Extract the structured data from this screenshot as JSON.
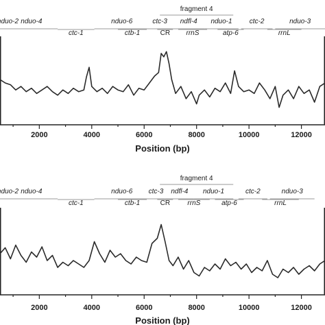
{
  "chart_data": [
    {
      "type": "line",
      "xlabel": "Position (bp)",
      "xticks": [
        2000,
        4000,
        6000,
        8000,
        10000,
        12000
      ],
      "xlim": [
        500,
        12900
      ],
      "fragment_label": "fragment 4",
      "fragment_span": [
        6600,
        9400
      ],
      "genes_top": [
        {
          "name": "nduo-2",
          "start": 500,
          "end": 1100
        },
        {
          "name": "nduo-4",
          "start": 700,
          "end": 2700
        },
        {
          "name": "nduo-6",
          "start": 4100,
          "end": 6200
        },
        {
          "name": "ctc-3",
          "start": 6100,
          "end": 7100
        },
        {
          "name": "ndfl-4",
          "start": 7100,
          "end": 8300
        },
        {
          "name": "nduo-1",
          "start": 8300,
          "end": 9600
        },
        {
          "name": "ctc-2",
          "start": 9700,
          "end": 10900
        },
        {
          "name": "nduo-3",
          "start": 11000,
          "end": 12900
        }
      ],
      "genes_bottom": [
        {
          "name": "ctc-1",
          "start": 2700,
          "end": 4100,
          "italic": true
        },
        {
          "name": "ctb-1",
          "start": 5000,
          "end": 6100,
          "italic": true
        },
        {
          "name": "CR",
          "start": 6500,
          "end": 7100,
          "italic": false
        },
        {
          "name": "rrnS",
          "start": 7300,
          "end": 8400,
          "italic": true
        },
        {
          "name": "atp-6",
          "start": 8800,
          "end": 9800,
          "italic": true
        },
        {
          "name": "rrnL",
          "start": 10700,
          "end": 12000,
          "italic": true
        }
      ],
      "series": [
        {
          "x": [
            500,
            700,
            900,
            1100,
            1300,
            1500,
            1700,
            1900,
            2100,
            2300,
            2500,
            2700,
            2900,
            3100,
            3300,
            3500,
            3700,
            3800,
            3900,
            4000,
            4200,
            4400,
            4600,
            4800,
            5000,
            5200,
            5400,
            5600,
            5800,
            6000,
            6200,
            6400,
            6550,
            6650,
            6750,
            6850,
            6950,
            7050,
            7200,
            7400,
            7600,
            7800,
            8000,
            8100,
            8300,
            8500,
            8700,
            8900,
            9100,
            9300,
            9450,
            9600,
            9800,
            10000,
            10200,
            10400,
            10600,
            10800,
            11000,
            11150,
            11300,
            11500,
            11700,
            11900,
            12100,
            12300,
            12500,
            12700,
            12900
          ],
          "y": [
            0.52,
            0.48,
            0.46,
            0.4,
            0.44,
            0.38,
            0.42,
            0.36,
            0.4,
            0.44,
            0.38,
            0.34,
            0.4,
            0.36,
            0.42,
            0.38,
            0.4,
            0.55,
            0.66,
            0.44,
            0.38,
            0.42,
            0.36,
            0.44,
            0.4,
            0.38,
            0.46,
            0.34,
            0.42,
            0.4,
            0.48,
            0.56,
            0.6,
            0.82,
            0.78,
            0.84,
            0.7,
            0.52,
            0.36,
            0.44,
            0.3,
            0.38,
            0.24,
            0.34,
            0.4,
            0.32,
            0.42,
            0.38,
            0.48,
            0.36,
            0.62,
            0.44,
            0.38,
            0.4,
            0.36,
            0.48,
            0.4,
            0.3,
            0.44,
            0.2,
            0.34,
            0.4,
            0.3,
            0.44,
            0.36,
            0.4,
            0.26,
            0.44,
            0.48
          ]
        }
      ]
    },
    {
      "type": "line",
      "xlabel": "Position (bp)",
      "xticks": [
        2000,
        4000,
        6000,
        8000,
        10000,
        12000
      ],
      "xlim": [
        500,
        12900
      ],
      "fragment_label": "fragment 4",
      "fragment_span": [
        6600,
        9400
      ],
      "genes_top": [
        {
          "name": "nduo-2",
          "start": 500,
          "end": 1100
        },
        {
          "name": "nduo-4",
          "start": 700,
          "end": 2700
        },
        {
          "name": "nduo-6",
          "start": 4100,
          "end": 6200
        },
        {
          "name": "ctc-3",
          "start": 6100,
          "end": 6800
        },
        {
          "name": "ndfl-4",
          "start": 6800,
          "end": 7900
        },
        {
          "name": "nduo-1",
          "start": 7900,
          "end": 9400
        },
        {
          "name": "ctc-2",
          "start": 9600,
          "end": 10700
        },
        {
          "name": "nduo-3",
          "start": 10800,
          "end": 12500
        }
      ],
      "genes_bottom": [
        {
          "name": "ctc-1",
          "start": 2700,
          "end": 4100,
          "italic": true
        },
        {
          "name": "ctb-1",
          "start": 5000,
          "end": 6100,
          "italic": true
        },
        {
          "name": "CR",
          "start": 6500,
          "end": 7100,
          "italic": false
        },
        {
          "name": "rrnS",
          "start": 7300,
          "end": 8500,
          "italic": true
        },
        {
          "name": "atp-6",
          "start": 8700,
          "end": 9800,
          "italic": true
        },
        {
          "name": "rrnL",
          "start": 10500,
          "end": 11900,
          "italic": true
        }
      ],
      "series": [
        {
          "x": [
            500,
            700,
            900,
            1100,
            1300,
            1500,
            1700,
            1900,
            2100,
            2300,
            2500,
            2700,
            2900,
            3100,
            3300,
            3500,
            3700,
            3900,
            4100,
            4300,
            4500,
            4700,
            4900,
            5100,
            5300,
            5500,
            5700,
            5900,
            6100,
            6300,
            6500,
            6650,
            6800,
            6950,
            7100,
            7300,
            7500,
            7700,
            7900,
            8100,
            8300,
            8500,
            8700,
            8900,
            9100,
            9300,
            9500,
            9700,
            9900,
            10100,
            10300,
            10500,
            10700,
            10900,
            11100,
            11300,
            11500,
            11700,
            11900,
            12100,
            12300,
            12500,
            12700,
            12900
          ],
          "y": [
            0.48,
            0.55,
            0.42,
            0.58,
            0.46,
            0.38,
            0.5,
            0.44,
            0.56,
            0.4,
            0.46,
            0.32,
            0.38,
            0.34,
            0.4,
            0.36,
            0.32,
            0.4,
            0.62,
            0.48,
            0.38,
            0.52,
            0.44,
            0.48,
            0.4,
            0.36,
            0.44,
            0.4,
            0.38,
            0.6,
            0.66,
            0.82,
            0.62,
            0.4,
            0.34,
            0.44,
            0.3,
            0.4,
            0.26,
            0.22,
            0.32,
            0.28,
            0.36,
            0.3,
            0.42,
            0.34,
            0.38,
            0.3,
            0.36,
            0.26,
            0.32,
            0.28,
            0.4,
            0.24,
            0.2,
            0.3,
            0.26,
            0.32,
            0.24,
            0.3,
            0.34,
            0.28,
            0.36,
            0.4
          ]
        }
      ]
    }
  ]
}
